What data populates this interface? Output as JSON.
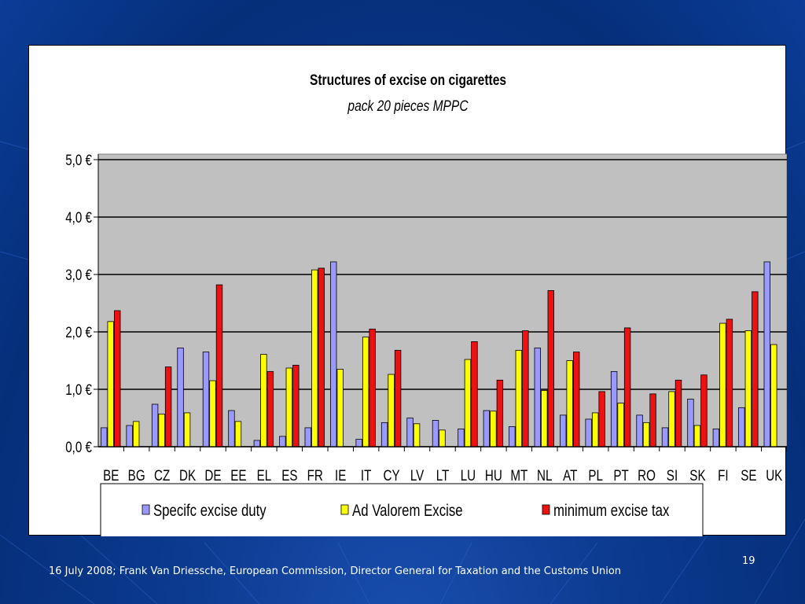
{
  "slide": {
    "number": "19",
    "footer": "16 July 2008; Frank Van Driessche, European Commission, Director General for Taxation and the Customs Union"
  },
  "chart_data": {
    "type": "bar",
    "title": "Structures of excise on cigarettes",
    "subtitle": "pack 20 pieces MPPC",
    "xlabel": "",
    "ylabel": "",
    "ylim": [
      0,
      5
    ],
    "yticks": [
      "0,0 €",
      "1,0 €",
      "2,0 €",
      "3,0 €",
      "4,0 €",
      "5,0 €"
    ],
    "grid": true,
    "legend_position": "bottom",
    "categories": [
      "BE",
      "BG",
      "CZ",
      "DK",
      "DE",
      "EE",
      "EL",
      "ES",
      "FR",
      "IE",
      "IT",
      "CY",
      "LV",
      "LT",
      "LU",
      "HU",
      "MT",
      "NL",
      "AT",
      "PL",
      "PT",
      "RO",
      "SI",
      "SK",
      "FI",
      "SE",
      "UK"
    ],
    "series": [
      {
        "name": "Specifc excise duty",
        "color": "#9999ff",
        "values": [
          0.33,
          0.37,
          0.74,
          1.72,
          1.65,
          0.63,
          0.11,
          0.18,
          0.33,
          3.22,
          0.13,
          0.42,
          0.5,
          0.46,
          0.31,
          0.63,
          0.35,
          1.72,
          0.55,
          0.48,
          1.31,
          0.55,
          0.33,
          0.83,
          0.31,
          0.68,
          3.22
        ]
      },
      {
        "name": "Ad Valorem Excise",
        "color": "#ffff00",
        "values": [
          2.18,
          0.44,
          0.57,
          0.59,
          1.15,
          0.44,
          1.61,
          1.37,
          3.08,
          1.35,
          1.91,
          1.26,
          0.4,
          0.29,
          1.52,
          0.62,
          1.68,
          0.98,
          1.5,
          0.59,
          0.76,
          0.42,
          0.96,
          0.37,
          2.15,
          2.02,
          1.78
        ]
      },
      {
        "name": "minimum excise tax",
        "color": "#ee1111",
        "values": [
          2.37,
          0,
          1.39,
          0,
          2.82,
          0,
          1.31,
          1.42,
          3.11,
          0,
          2.05,
          1.68,
          0,
          0,
          1.83,
          1.16,
          2.02,
          2.72,
          1.65,
          0.96,
          2.07,
          0.92,
          1.16,
          1.25,
          2.22,
          2.7,
          0
        ]
      }
    ],
    "colors": {
      "plot_background": "#c0c0c0"
    }
  }
}
